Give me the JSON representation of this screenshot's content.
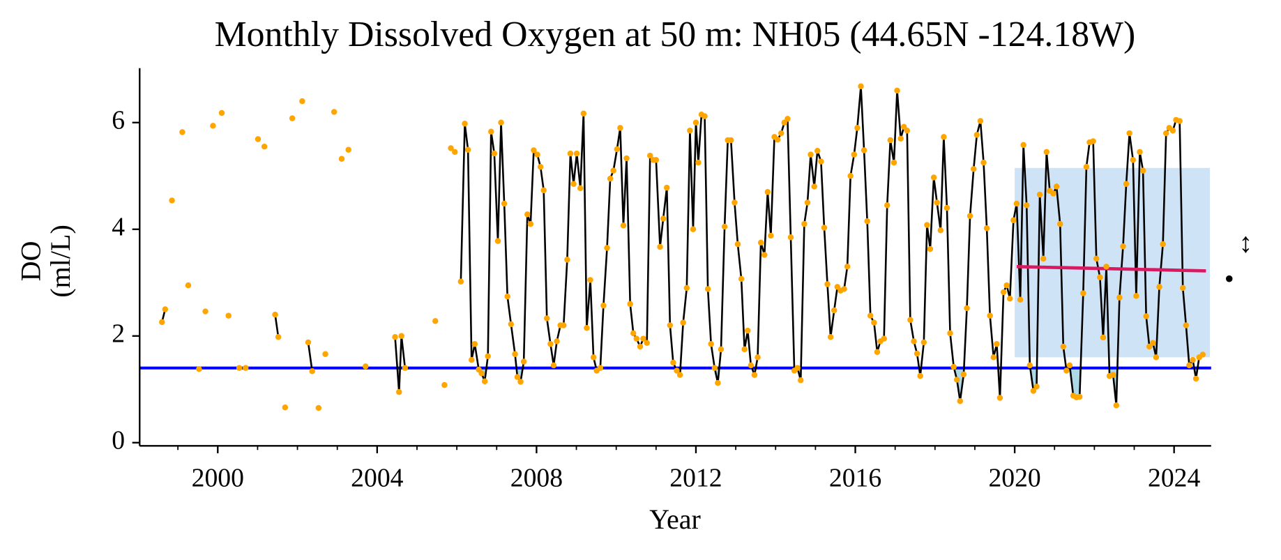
{
  "chart_data": {
    "type": "line-scatter",
    "title": "Monthly Dissolved Oxygen at 50 m: NH05 (44.65N -124.18W)",
    "xlabel": "Year",
    "ylabel": [
      "DO",
      "(ml/L)"
    ],
    "xlim": [
      1998.04,
      2024.93
    ],
    "ylim": [
      -0.06,
      7.02
    ],
    "xticks": [
      2000,
      2004,
      2008,
      2012,
      2016,
      2020,
      2024
    ],
    "xminorticks": [
      1999,
      2001,
      2002,
      2003,
      2005,
      2006,
      2007,
      2009,
      2010,
      2011,
      2013,
      2014,
      2015,
      2017,
      2018,
      2019,
      2021,
      2022,
      2023
    ],
    "yticks": [
      0,
      2,
      4,
      6
    ],
    "line_color": "#000000",
    "point_color": "#ffa500",
    "fill_color": "#add8e6",
    "x": [
      1998.6,
      1998.68,
      1998.85,
      1999.11,
      1999.26,
      1999.53,
      1999.69,
      1999.88,
      2000.1,
      2000.27,
      2000.54,
      2000.7,
      2001.01,
      2001.17,
      2001.44,
      2001.52,
      2001.69,
      2001.87,
      2002.12,
      2002.27,
      2002.37,
      2002.53,
      2002.7,
      2002.92,
      2003.11,
      2003.28,
      2003.71,
      2004.45,
      2004.55,
      2004.61,
      2004.7,
      2005.46,
      2005.69,
      2005.85,
      2005.95,
      2006.1,
      2006.2,
      2006.28,
      2006.37,
      2006.45,
      2006.55,
      2006.62,
      2006.7,
      2006.78,
      2006.86,
      2006.94,
      2007.03,
      2007.11,
      2007.19,
      2007.27,
      2007.36,
      2007.46,
      2007.52,
      2007.6,
      2007.68,
      2007.77,
      2007.85,
      2007.93,
      2008.02,
      2008.1,
      2008.18,
      2008.26,
      2008.35,
      2008.43,
      2008.51,
      2008.6,
      2008.68,
      2008.77,
      2008.85,
      2008.93,
      2009.01,
      2009.1,
      2009.18,
      2009.26,
      2009.35,
      2009.43,
      2009.51,
      2009.6,
      2009.68,
      2009.77,
      2009.85,
      2009.93,
      2010.02,
      2010.1,
      2010.18,
      2010.26,
      2010.35,
      2010.43,
      2010.51,
      2010.6,
      2010.68,
      2010.77,
      2010.85,
      2010.93,
      2011.0,
      2011.1,
      2011.18,
      2011.27,
      2011.35,
      2011.43,
      2011.52,
      2011.6,
      2011.68,
      2011.77,
      2011.85,
      2011.93,
      2012.0,
      2012.06,
      2012.14,
      2012.22,
      2012.3,
      2012.38,
      2012.47,
      2012.55,
      2012.63,
      2012.72,
      2012.8,
      2012.88,
      2012.97,
      2013.05,
      2013.14,
      2013.22,
      2013.3,
      2013.38,
      2013.47,
      2013.55,
      2013.63,
      2013.72,
      2013.8,
      2013.88,
      2013.97,
      2014.05,
      2014.14,
      2014.22,
      2014.3,
      2014.38,
      2014.47,
      2014.55,
      2014.63,
      2014.72,
      2014.8,
      2014.88,
      2014.97,
      2015.05,
      2015.14,
      2015.22,
      2015.3,
      2015.38,
      2015.47,
      2015.55,
      2015.63,
      2015.72,
      2015.8,
      2015.88,
      2015.97,
      2016.05,
      2016.14,
      2016.22,
      2016.3,
      2016.38,
      2016.47,
      2016.55,
      2016.63,
      2016.72,
      2016.8,
      2016.88,
      2016.97,
      2017.05,
      2017.14,
      2017.22,
      2017.3,
      2017.38,
      2017.47,
      2017.55,
      2017.63,
      2017.72,
      2017.8,
      2017.88,
      2017.97,
      2018.05,
      2018.14,
      2018.22,
      2018.3,
      2018.38,
      2018.47,
      2018.55,
      2018.63,
      2018.72,
      2018.8,
      2018.88,
      2018.97,
      2019.05,
      2019.14,
      2019.22,
      2019.3,
      2019.38,
      2019.47,
      2019.55,
      2019.63,
      2019.72,
      2019.8,
      2019.88,
      2019.97,
      2020.05,
      2020.14,
      2020.22,
      2020.3,
      2020.38,
      2020.47,
      2020.55,
      2020.63,
      2020.72,
      2020.8,
      2020.88,
      2020.97,
      2021.05,
      2021.14,
      2021.22,
      2021.3,
      2021.38,
      2021.47,
      2021.55,
      2021.63,
      2021.72,
      2021.8,
      2021.88,
      2021.97,
      2022.05,
      2022.14,
      2022.22,
      2022.3,
      2022.38,
      2022.47,
      2022.55,
      2022.63,
      2022.72,
      2022.8,
      2022.88,
      2022.97,
      2023.05,
      2023.14,
      2023.22,
      2023.3,
      2023.38,
      2023.47,
      2023.55,
      2023.63,
      2023.72,
      2023.8,
      2023.88,
      2023.97,
      2024.05,
      2024.14,
      2024.22,
      2024.3,
      2024.38,
      2024.47,
      2024.55,
      2024.63,
      2024.72
    ],
    "values": [
      2.26,
      2.5,
      4.54,
      5.82,
      2.95,
      1.38,
      2.46,
      5.94,
      6.18,
      2.38,
      1.4,
      1.4,
      5.69,
      5.55,
      2.4,
      1.98,
      0.66,
      6.08,
      6.4,
      1.88,
      1.34,
      0.65,
      1.66,
      6.2,
      5.32,
      5.49,
      1.43,
      1.98,
      0.95,
      2.0,
      1.4,
      2.28,
      1.08,
      5.52,
      5.45,
      3.02,
      5.98,
      5.49,
      1.55,
      1.85,
      1.37,
      1.3,
      1.15,
      1.62,
      5.83,
      5.42,
      3.78,
      6.0,
      4.48,
      2.74,
      2.22,
      1.66,
      1.23,
      1.14,
      1.52,
      4.28,
      4.1,
      5.48,
      5.4,
      5.17,
      4.73,
      2.33,
      1.85,
      1.45,
      1.9,
      2.2,
      2.2,
      3.43,
      5.42,
      4.85,
      5.42,
      4.77,
      6.17,
      2.15,
      3.05,
      1.6,
      1.35,
      1.4,
      2.57,
      3.65,
      4.95,
      5.1,
      5.5,
      5.9,
      4.07,
      5.33,
      2.6,
      2.05,
      1.95,
      1.8,
      1.95,
      1.87,
      5.38,
      5.3,
      5.3,
      3.67,
      4.2,
      4.78,
      2.2,
      1.5,
      1.35,
      1.27,
      2.25,
      2.9,
      5.85,
      4.0,
      6.0,
      5.25,
      6.15,
      6.12,
      2.88,
      1.85,
      1.4,
      1.12,
      1.75,
      4.05,
      5.67,
      5.67,
      4.5,
      3.72,
      3.07,
      1.75,
      2.1,
      1.45,
      1.27,
      1.6,
      3.75,
      3.52,
      4.7,
      3.88,
      5.73,
      5.68,
      5.8,
      6.0,
      6.07,
      3.85,
      1.35,
      1.4,
      1.17,
      4.1,
      4.5,
      5.4,
      4.8,
      5.47,
      5.27,
      4.03,
      2.97,
      1.98,
      2.48,
      2.92,
      2.85,
      2.88,
      3.3,
      5.0,
      5.4,
      5.9,
      6.68,
      5.48,
      4.15,
      2.38,
      2.25,
      1.7,
      1.9,
      1.95,
      4.45,
      5.67,
      5.25,
      6.6,
      5.7,
      5.92,
      5.85,
      2.3,
      1.9,
      1.67,
      1.25,
      1.88,
      4.08,
      3.63,
      4.97,
      4.5,
      3.98,
      5.73,
      4.4,
      2.05,
      1.42,
      1.18,
      0.78,
      1.28,
      2.52,
      4.25,
      5.13,
      5.77,
      6.03,
      5.25,
      4.02,
      2.38,
      1.6,
      1.85,
      0.84,
      2.82,
      2.95,
      2.7,
      4.17,
      4.48,
      2.68,
      5.58,
      4.45,
      1.45,
      0.97,
      1.05,
      4.65,
      3.45,
      5.45,
      4.72,
      4.67,
      4.8,
      4.1,
      1.8,
      1.35,
      1.45,
      0.88,
      0.85,
      0.86,
      2.8,
      5.17,
      5.63,
      5.65,
      3.45,
      3.1,
      1.97,
      3.3,
      1.25,
      1.27,
      0.7,
      2.72,
      3.68,
      4.85,
      5.8,
      5.3,
      2.75,
      5.45,
      5.1,
      2.37,
      1.8,
      1.87,
      1.6,
      2.92,
      3.72,
      5.8,
      5.9,
      5.85,
      6.05,
      6.03,
      2.9,
      2.2,
      1.45,
      1.55,
      1.2,
      1.6,
      1.65
    ],
    "threshold": {
      "value": 1.4,
      "color": "#0000ff"
    },
    "shaded_region": {
      "x": [
        2020.0,
        2024.9
      ],
      "y": [
        1.6,
        5.15
      ],
      "color": "#cfe3f7"
    },
    "trend": {
      "x": [
        2020.05,
        2024.8
      ],
      "values": [
        3.3,
        3.22
      ],
      "color": "#d81b60"
    },
    "annotations": [
      "↔",
      "•"
    ]
  }
}
